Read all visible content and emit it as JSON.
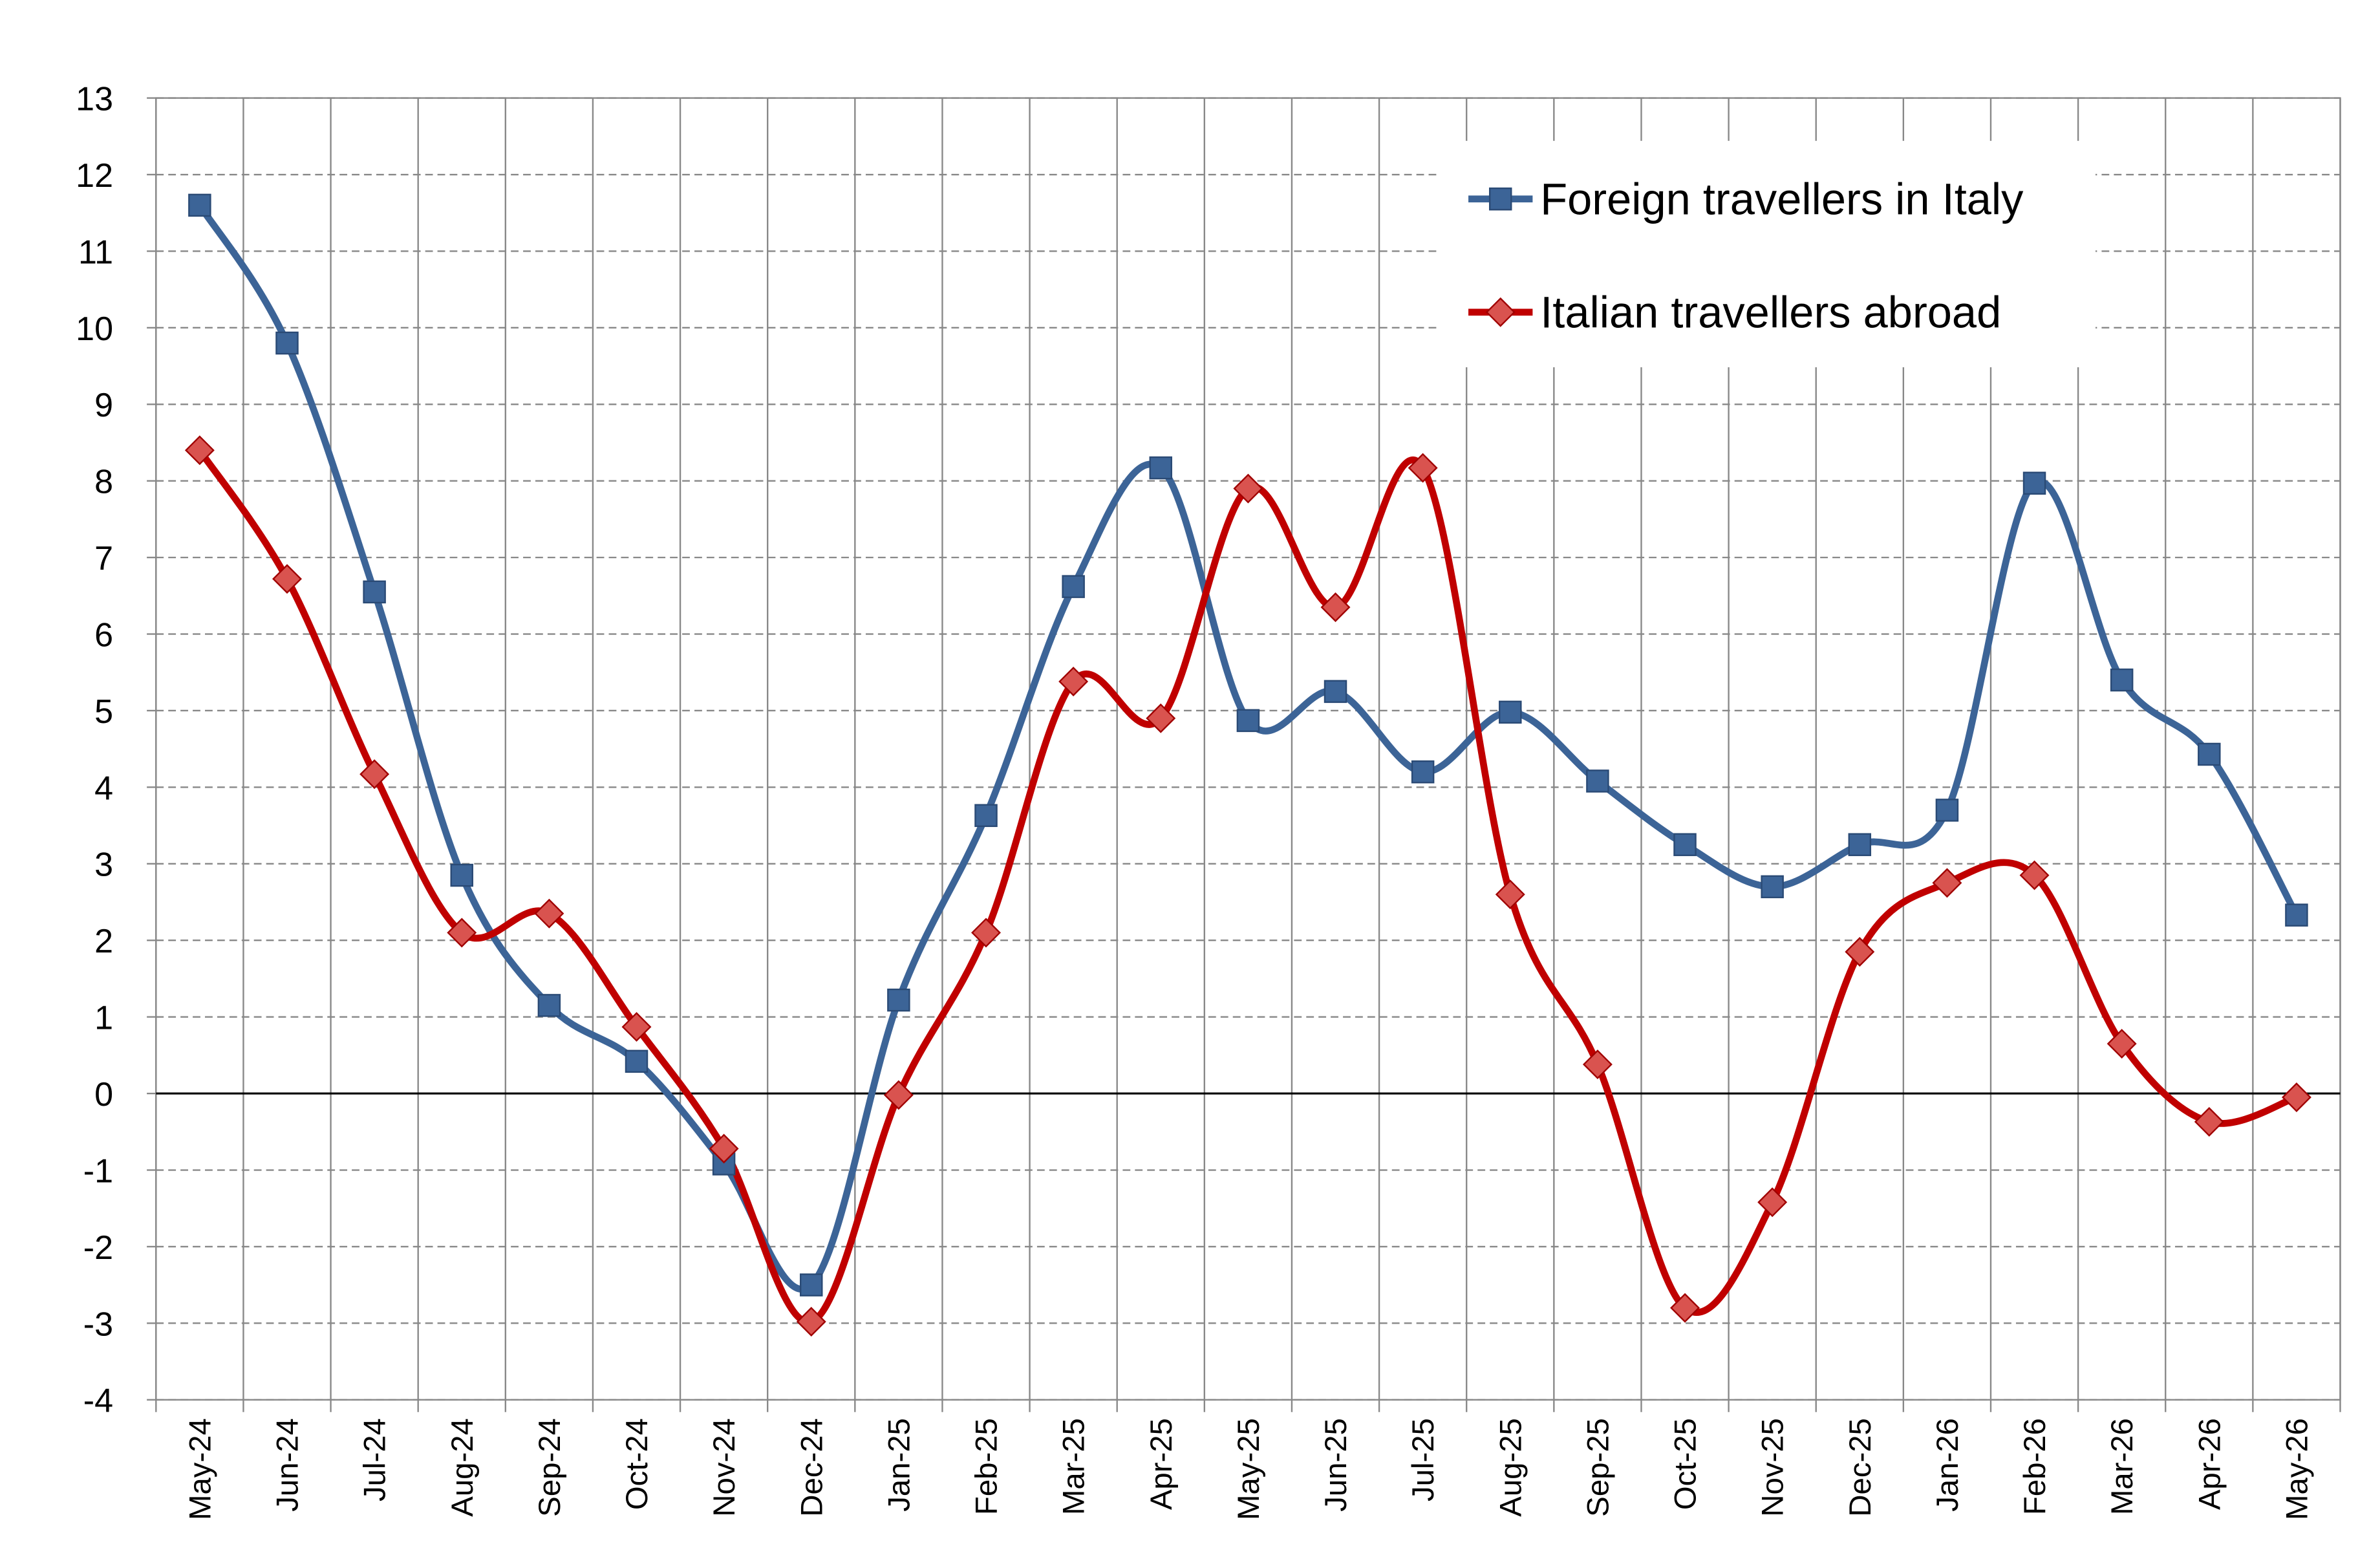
{
  "chart_data": {
    "type": "line",
    "categories": [
      "May-24",
      "Jun-24",
      "Jul-24",
      "Aug-24",
      "Sep-24",
      "Oct-24",
      "Nov-24",
      "Dec-24",
      "Jan-25",
      "Feb-25",
      "Mar-25",
      "Apr-25",
      "May-25",
      "Jun-25",
      "Jul-25",
      "Aug-25",
      "Sep-25",
      "Oct-25",
      "Nov-25",
      "Dec-25",
      "Jan-26",
      "Feb-26",
      "Mar-26",
      "Apr-26",
      "May-26"
    ],
    "series": [
      {
        "name": "Foreign travellers in Italy",
        "color": "#3c6497",
        "marker": "square",
        "values": [
          11.6,
          9.8,
          6.55,
          2.85,
          1.15,
          0.42,
          -0.92,
          -2.5,
          1.22,
          3.63,
          6.62,
          8.17,
          4.87,
          5.25,
          4.2,
          4.98,
          4.08,
          3.25,
          2.7,
          3.25,
          3.7,
          7.97,
          5.4,
          4.43,
          2.33
        ]
      },
      {
        "name": "Italian travellers abroad",
        "color": "#c00000",
        "marker": "diamond",
        "values": [
          8.4,
          6.72,
          4.17,
          2.1,
          2.35,
          0.87,
          -0.72,
          -2.98,
          -0.02,
          2.1,
          5.38,
          4.9,
          7.9,
          6.35,
          8.17,
          2.6,
          0.38,
          -2.8,
          -1.42,
          1.85,
          2.75,
          2.85,
          0.65,
          -0.37,
          -0.05
        ]
      }
    ],
    "ylim": [
      -4,
      13
    ],
    "yticks": [
      -4,
      -3,
      -2,
      -1,
      0,
      1,
      2,
      3,
      4,
      5,
      6,
      7,
      8,
      9,
      10,
      11,
      12,
      13
    ],
    "grid": true,
    "smooth": true,
    "legend": "top-right"
  }
}
